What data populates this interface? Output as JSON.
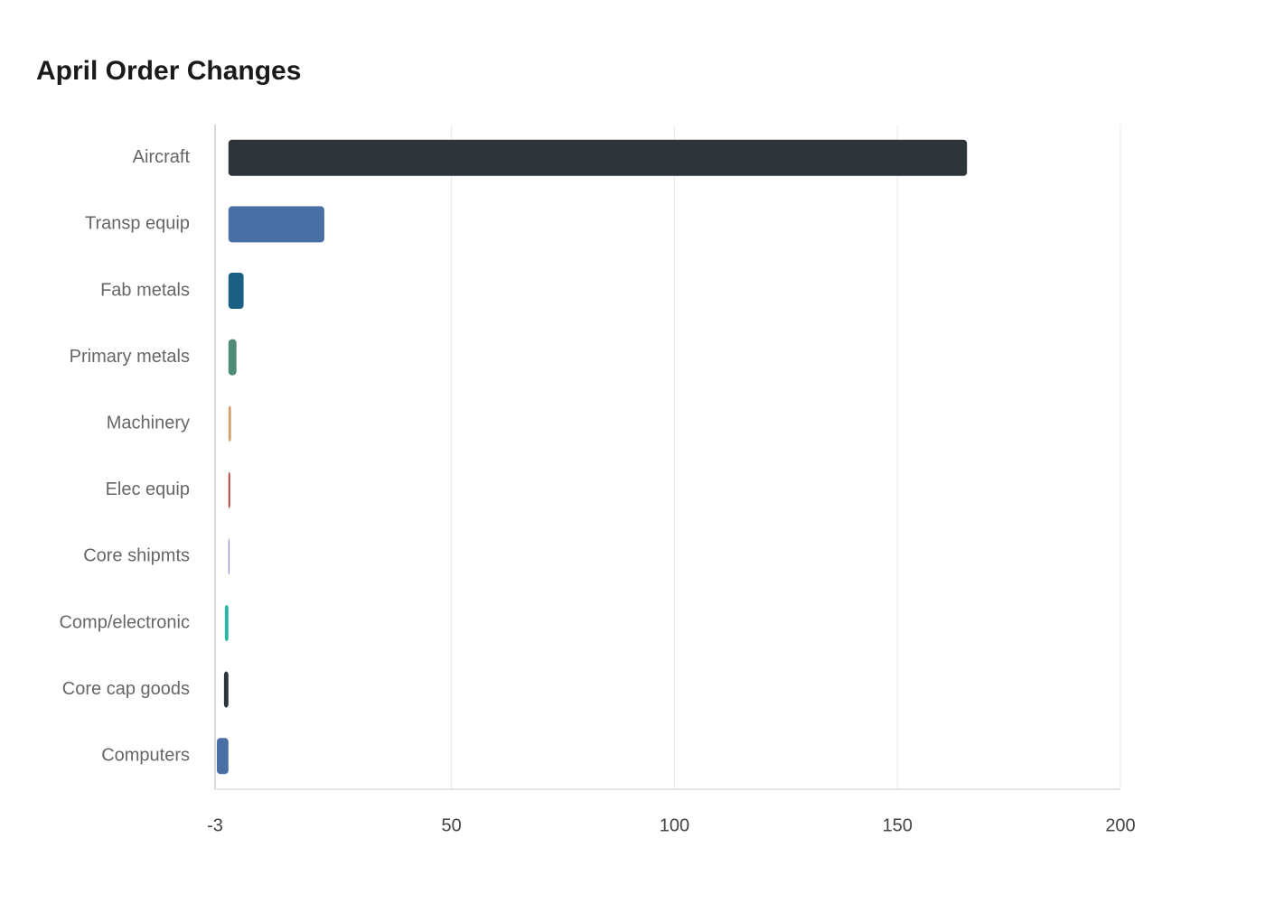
{
  "chart_data": {
    "type": "hbar",
    "title": "April Order Changes",
    "categories": [
      "Aircraft",
      "Transp equip",
      "Fab metals",
      "Primary metals",
      "Machinery",
      "Elec equip",
      "Core shipmts",
      "Comp/electronic",
      "Core cap goods",
      "Computers"
    ],
    "values": [
      165.6,
      21.5,
      3.4,
      1.8,
      0.6,
      0.4,
      0.2,
      -0.8,
      -1.0,
      -2.6
    ],
    "colors": [
      "#2e3538",
      "#4a6fa5",
      "#1b5f85",
      "#4f8b78",
      "#d4a373",
      "#b5443b",
      "#7d6bc4",
      "#2ab5a5",
      "#2e3538",
      "#4a6fa5"
    ],
    "xlim": [
      -3,
      200
    ],
    "xticks": [
      -3,
      50,
      100,
      150,
      200
    ],
    "grid": true
  }
}
